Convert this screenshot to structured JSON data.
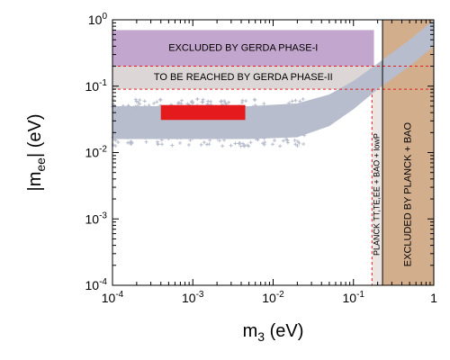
{
  "chart_data": {
    "type": "scatter",
    "x_scale": "log",
    "y_scale": "log",
    "xlim": [
      0.0001,
      1
    ],
    "ylim": [
      0.0001,
      1
    ],
    "xlabel": {
      "main": "m",
      "sub": "3",
      "unit": " (eV)"
    },
    "ylabel": {
      "pre": "|m",
      "sub": "ee",
      "post": "| (eV)"
    },
    "x_ticks": [
      {
        "base": "10",
        "exp": "-4",
        "value": 0.0001
      },
      {
        "base": "10",
        "exp": "-3",
        "value": 0.001
      },
      {
        "base": "10",
        "exp": "-2",
        "value": 0.01
      },
      {
        "base": "10",
        "exp": "-1",
        "value": 0.1
      },
      {
        "base": "1",
        "exp": "",
        "value": 1
      }
    ],
    "y_ticks": [
      {
        "base": "10",
        "exp": "-4",
        "value": 0.0001
      },
      {
        "base": "10",
        "exp": "-3",
        "value": 0.001
      },
      {
        "base": "10",
        "exp": "-2",
        "value": 0.01
      },
      {
        "base": "10",
        "exp": "-1",
        "value": 0.1
      },
      {
        "base": "10",
        "exp": "0",
        "value": 1
      }
    ],
    "regions": [
      {
        "label": "EXCLUDED BY GERDA PHASE-I",
        "x_range": [
          0.0001,
          0.18
        ],
        "y_range": [
          0.2,
          0.7
        ],
        "color": "#c3a6cd"
      },
      {
        "label": "TO BE REACHED BY GERDA PHASE-II",
        "x_range": [
          0.0001,
          0.18
        ],
        "y_range": [
          0.09,
          0.2
        ],
        "color": "#dcd6d6"
      },
      {
        "label": "PLANCK TT,TE,EE + BAO + lowP",
        "x_range": [
          0.17,
          0.23
        ],
        "y_range": [
          0.0001,
          0.2
        ],
        "color": "#ece5e2"
      },
      {
        "label": "EXCLUDED BY PLANCK + BAO",
        "x_range": [
          0.23,
          1
        ],
        "y_range": [
          0.0001,
          1
        ],
        "color": "#d2ae8d"
      }
    ],
    "band": {
      "color": "#b7bdcc",
      "upper": [
        [
          0.0001,
          0.05
        ],
        [
          0.005,
          0.05
        ],
        [
          0.02,
          0.055
        ],
        [
          0.05,
          0.075
        ],
        [
          0.1,
          0.12
        ],
        [
          0.2,
          0.22
        ],
        [
          0.5,
          0.5
        ],
        [
          1,
          1
        ]
      ],
      "lower": [
        [
          0.0001,
          0.016
        ],
        [
          0.005,
          0.016
        ],
        [
          0.02,
          0.017
        ],
        [
          0.05,
          0.025
        ],
        [
          0.1,
          0.045
        ],
        [
          0.2,
          0.09
        ],
        [
          0.5,
          0.2
        ],
        [
          1,
          0.4
        ]
      ]
    },
    "highlight": {
      "x_range": [
        0.0004,
        0.0045
      ],
      "y_range": [
        0.031,
        0.052
      ],
      "color": "#e41a1c"
    },
    "dashed_lines": [
      {
        "orientation": "horizontal",
        "value": 0.2,
        "x_range": [
          0.0001,
          1
        ],
        "color": "#e41a1c"
      },
      {
        "orientation": "horizontal",
        "value": 0.09,
        "x_range": [
          0.0001,
          1
        ],
        "color": "#e41a1c"
      },
      {
        "orientation": "vertical",
        "value": 0.17,
        "y_range": [
          0.0001,
          0.09
        ],
        "color": "#e41a1c"
      }
    ],
    "solid_line": {
      "orientation": "vertical",
      "value": 0.23,
      "color": "#000000"
    }
  }
}
